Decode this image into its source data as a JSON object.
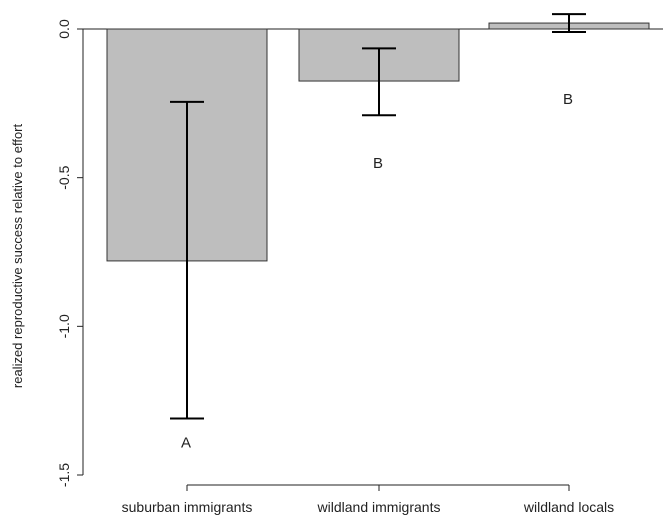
{
  "chart_data": {
    "type": "bar",
    "categories": [
      "suburban immigrants",
      "wildland immigrants",
      "wildland locals"
    ],
    "values": [
      -0.78,
      -0.175,
      0.02
    ],
    "error_bars": {
      "lower": [
        -1.31,
        -0.29,
        -0.01
      ],
      "upper": [
        -0.245,
        -0.065,
        0.05
      ]
    },
    "group_letters": [
      "A",
      "B",
      "B"
    ],
    "ylabel": "realized reproductive success relative to effort",
    "xlabel": "",
    "title": "",
    "ylim": [
      -1.5,
      0.0
    ],
    "yticks": [
      0.0,
      -0.5,
      -1.0,
      -1.5
    ],
    "ytick_labels": [
      "0.0",
      "-0.5",
      "-1.0",
      "-1.5"
    ],
    "zero_line": true,
    "grid": false,
    "colors": {
      "bar_fill": "#bebebe",
      "bar_stroke": "#333333",
      "axis": "#222222"
    }
  }
}
